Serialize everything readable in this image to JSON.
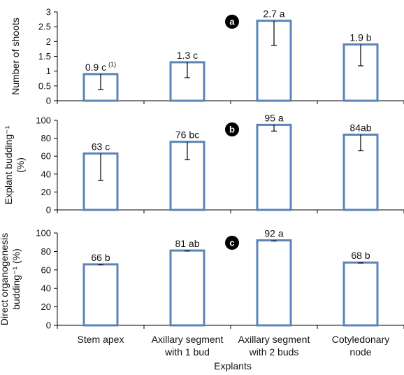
{
  "figure": {
    "xlabel": "Explants"
  },
  "colors": {
    "bar_edge": "#5b84b8",
    "bar_fill": "#ffffff",
    "axis": "#000000",
    "error_bar": "#000000",
    "panel_label_bg": "#000000",
    "panel_label_text": "#ffffff"
  },
  "chart_data": [
    {
      "type": "bar",
      "panel_label": "a",
      "ylabel_lines": [
        "Number of shoots"
      ],
      "ylim": [
        0,
        3
      ],
      "yticks": [
        "0",
        "0.5",
        "1",
        "1.5",
        "2",
        "2.5",
        "3"
      ],
      "ytick_values": [
        0,
        0.5,
        1,
        1.5,
        2,
        2.5,
        3
      ],
      "categories": [
        "Stem apex",
        "Axillary segment with 1 bud",
        "Axillary segment with 2 buds",
        "Cotyledonary node"
      ],
      "values": [
        0.9,
        1.3,
        2.7,
        1.9
      ],
      "error_low": [
        0.38,
        0.78,
        1.87,
        1.18
      ],
      "error_high": [
        0.9,
        1.3,
        2.7,
        1.9
      ],
      "data_labels": [
        "0.9 c",
        "1.3 c",
        "2.7 a",
        "1.9 b"
      ],
      "data_label_sup": [
        "(1)",
        "",
        "",
        ""
      ]
    },
    {
      "type": "bar",
      "panel_label": "b",
      "ylabel_lines": [
        "Explant budding⁻¹",
        "(%)"
      ],
      "ylim": [
        0,
        100
      ],
      "yticks": [
        "0",
        "20",
        "40",
        "60",
        "80",
        "100"
      ],
      "ytick_values": [
        0,
        20,
        40,
        60,
        80,
        100
      ],
      "categories": [
        "Stem apex",
        "Axillary segment with 1 bud",
        "Axillary segment with 2 buds",
        "Cotyledonary node"
      ],
      "values": [
        63,
        76,
        95,
        84
      ],
      "error_low": [
        33,
        56,
        88,
        66
      ],
      "error_high": [
        63,
        76,
        95,
        84
      ],
      "data_labels": [
        "63 c",
        "76 bc",
        "95 a",
        "84ab"
      ],
      "data_label_sup": [
        "",
        "",
        "",
        ""
      ]
    },
    {
      "type": "bar",
      "panel_label": "c",
      "ylabel_lines": [
        "Direct organogenesis",
        "budding⁻¹ (%)"
      ],
      "ylim": [
        0,
        100
      ],
      "yticks": [
        "0",
        "20",
        "40",
        "60",
        "80",
        "100"
      ],
      "ytick_values": [
        0,
        20,
        40,
        60,
        80,
        100
      ],
      "categories": [
        "Stem apex",
        "Axillary segment with 1 bud",
        "Axillary segment with 2 buds",
        "Cotyledonary node"
      ],
      "category_lines": [
        [
          "Stem apex"
        ],
        [
          "Axillary segment",
          "with 1 bud"
        ],
        [
          "Axillary segment",
          "with 2 buds"
        ],
        [
          "Cotyledonary",
          "node"
        ]
      ],
      "values": [
        66,
        81,
        92,
        68
      ],
      "error_low": [
        65.5,
        80.5,
        91.3,
        67.5
      ],
      "error_high": [
        66,
        81,
        92,
        68
      ],
      "data_labels": [
        "66 b",
        "81 ab",
        "92 a",
        "68 b"
      ],
      "data_label_sup": [
        "",
        "",
        "",
        ""
      ]
    }
  ]
}
